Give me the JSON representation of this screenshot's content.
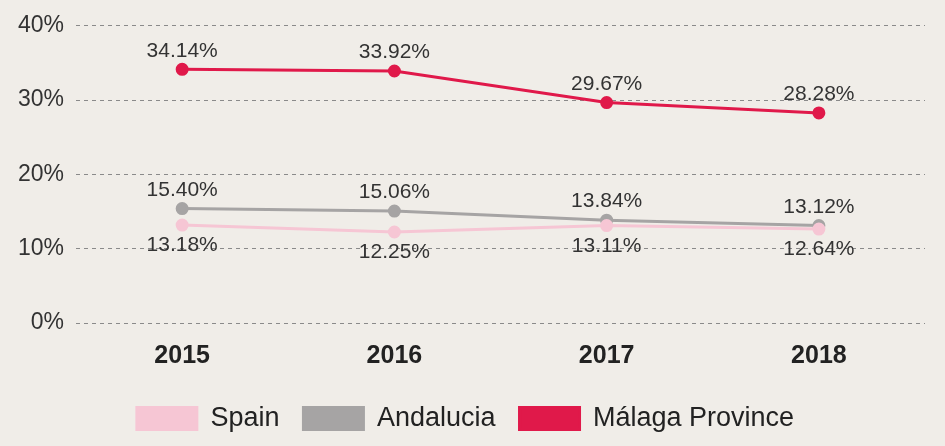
{
  "chart_data": {
    "type": "line",
    "categories": [
      "2015",
      "2016",
      "2017",
      "2018"
    ],
    "series": [
      {
        "name": "Spain",
        "color": "#f6c6d4",
        "values": [
          13.18,
          12.25,
          13.11,
          12.64
        ],
        "value_labels": [
          "13.18%",
          "12.25%",
          "13.11%",
          "12.64%"
        ]
      },
      {
        "name": "Andalucia",
        "color": "#a6a4a4",
        "values": [
          15.4,
          15.06,
          13.84,
          13.12
        ],
        "value_labels": [
          "15.40%",
          "15.06%",
          "13.84%",
          "13.12%"
        ]
      },
      {
        "name": "Málaga Province",
        "color": "#e0194a",
        "values": [
          34.14,
          33.92,
          29.67,
          28.28
        ],
        "value_labels": [
          "34.14%",
          "33.92%",
          "29.67%",
          "28.28%"
        ]
      }
    ],
    "ylim": [
      0,
      40
    ],
    "yticks": [
      {
        "value": 0,
        "label": "0%"
      },
      {
        "value": 10,
        "label": "10%"
      },
      {
        "value": 20,
        "label": "20%"
      },
      {
        "value": 30,
        "label": "30%"
      },
      {
        "value": 40,
        "label": "40%"
      }
    ],
    "grid": true,
    "legend": "bottom",
    "data_labels": true,
    "marker": "circle"
  }
}
